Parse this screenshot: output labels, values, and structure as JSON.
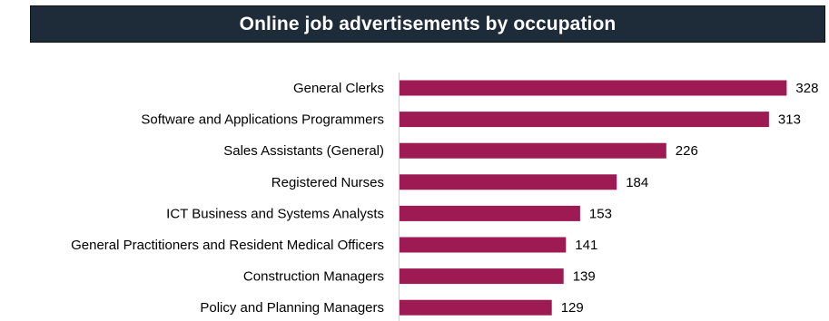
{
  "colors": {
    "title_background": "#1e2b38",
    "title_text": "#ffffff",
    "bar": "#9e1a53",
    "axis_line": "#d0d0d0"
  },
  "chart_data": {
    "type": "bar",
    "orientation": "horizontal",
    "title": "Online job advertisements by occupation",
    "categories": [
      "General Clerks",
      "Software and Applications Programmers",
      "Sales Assistants (General)",
      "Registered Nurses",
      "ICT Business and Systems Analysts",
      "General Practitioners and Resident Medical Officers",
      "Construction Managers",
      "Policy and Planning Managers"
    ],
    "values": [
      328,
      313,
      226,
      184,
      153,
      141,
      139,
      129
    ],
    "data_labels": [
      "328",
      "313",
      "226",
      "184",
      "153",
      "141",
      "139",
      "129"
    ],
    "xlim": [
      0,
      350
    ],
    "grid": false,
    "legend": "none"
  }
}
